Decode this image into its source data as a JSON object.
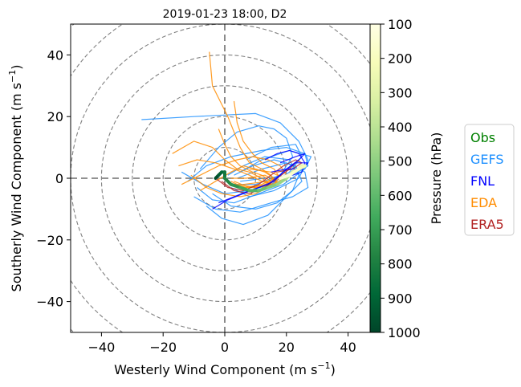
{
  "chart_data": {
    "type": "line",
    "title": "2019-01-23 18:00, D2",
    "xlabel": "Westerly Wind Component (m s",
    "ylabel": "Southerly Wind Component (m s",
    "unit_exponent": "−1",
    "unit_close": ")",
    "xlim": [
      -50,
      50
    ],
    "ylim": [
      -50,
      50
    ],
    "xticks": [
      -40,
      -20,
      0,
      20,
      40
    ],
    "yticks": [
      -40,
      -20,
      0,
      20,
      40
    ],
    "xtick_labels": [
      "−40",
      "−20",
      "0",
      "20",
      "40"
    ],
    "ytick_labels": [
      "−40",
      "−20",
      "0",
      "20",
      "40"
    ],
    "range_rings": [
      10,
      20,
      30,
      40,
      50,
      60,
      70
    ],
    "colorbar": {
      "label": "Pressure (hPa)",
      "ticks": [
        "100",
        "200",
        "300",
        "400",
        "500",
        "600",
        "700",
        "800",
        "900",
        "1000"
      ],
      "range": [
        100,
        1000
      ],
      "colors_top_to_bottom": [
        "#ffffe5",
        "#f7fcb9",
        "#d9f0a3",
        "#addd8e",
        "#78c679",
        "#41ab5d",
        "#238443",
        "#006837",
        "#004529"
      ]
    },
    "legend": {
      "placement": "outside right",
      "entries": [
        {
          "label": "Obs",
          "color": "#008000"
        },
        {
          "label": "GEFS",
          "color": "#1e90ff"
        },
        {
          "label": "FNL",
          "color": "#0000ff"
        },
        {
          "label": "EDA",
          "color": "#ff8c00"
        },
        {
          "label": "ERA5",
          "color": "#b22222"
        }
      ]
    },
    "series": [
      {
        "name": "GEFS",
        "color": "#1e90ff",
        "members": [
          [
            [
              -27,
              19
            ],
            [
              -10,
              20
            ],
            [
              10,
              21
            ],
            [
              18,
              18
            ],
            [
              24,
              12
            ],
            [
              27,
              6
            ],
            [
              24,
              0
            ],
            [
              16,
              -4
            ],
            [
              8,
              -6
            ],
            [
              2,
              -3
            ]
          ],
          [
            [
              -10,
              -6
            ],
            [
              -3,
              -10
            ],
            [
              5,
              -11
            ],
            [
              15,
              -8
            ],
            [
              22,
              -6
            ],
            [
              27,
              -3
            ],
            [
              26,
              2
            ],
            [
              20,
              5
            ],
            [
              12,
              3
            ],
            [
              4,
              0
            ]
          ],
          [
            [
              -6,
              -9
            ],
            [
              -1,
              -13
            ],
            [
              6,
              -15
            ],
            [
              14,
              -12
            ],
            [
              20,
              -6
            ],
            [
              25,
              -1
            ],
            [
              23,
              4
            ],
            [
              16,
              6
            ],
            [
              9,
              4
            ],
            [
              3,
              1
            ]
          ],
          [
            [
              -12,
              -1
            ],
            [
              -6,
              4
            ],
            [
              2,
              7
            ],
            [
              12,
              9
            ],
            [
              20,
              10
            ],
            [
              26,
              8
            ],
            [
              27,
              4
            ],
            [
              22,
              1
            ],
            [
              13,
              0
            ],
            [
              5,
              -1
            ]
          ],
          [
            [
              -8,
              3
            ],
            [
              -2,
              10
            ],
            [
              4,
              15
            ],
            [
              11,
              17
            ],
            [
              16,
              16
            ],
            [
              20,
              13
            ],
            [
              22,
              7
            ],
            [
              18,
              1
            ],
            [
              10,
              -2
            ],
            [
              3,
              -2
            ]
          ],
          [
            [
              -4,
              -5
            ],
            [
              2,
              -9
            ],
            [
              10,
              -10
            ],
            [
              17,
              -8
            ],
            [
              22,
              -4
            ],
            [
              24,
              1
            ],
            [
              21,
              6
            ],
            [
              13,
              7
            ],
            [
              6,
              4
            ],
            [
              1,
              1
            ]
          ],
          [
            [
              -14,
              2
            ],
            [
              -7,
              -2
            ],
            [
              0,
              -5
            ],
            [
              8,
              -4
            ],
            [
              15,
              -2
            ],
            [
              21,
              2
            ],
            [
              25,
              7
            ],
            [
              23,
              11
            ],
            [
              15,
              10
            ],
            [
              7,
              6
            ]
          ],
          [
            [
              -9,
              -3
            ],
            [
              -4,
              -7
            ],
            [
              3,
              -8
            ],
            [
              11,
              -5
            ],
            [
              19,
              -2
            ],
            [
              26,
              3
            ],
            [
              28,
              7
            ],
            [
              21,
              9
            ],
            [
              12,
              6
            ],
            [
              5,
              2
            ]
          ]
        ]
      },
      {
        "name": "EDA",
        "color": "#ff8c00",
        "members": [
          [
            [
              -5,
              41
            ],
            [
              -4,
              30
            ],
            [
              1,
              20
            ],
            [
              3,
              15
            ],
            [
              5,
              10
            ],
            [
              8,
              5
            ],
            [
              12,
              3
            ],
            [
              15,
              1
            ],
            [
              17,
              -2
            ],
            [
              12,
              -3
            ]
          ],
          [
            [
              3,
              25
            ],
            [
              4,
              18
            ],
            [
              6,
              12
            ],
            [
              9,
              8
            ],
            [
              12,
              5
            ],
            [
              16,
              3
            ],
            [
              18,
              0
            ],
            [
              14,
              -2
            ],
            [
              8,
              -3
            ],
            [
              3,
              -1
            ]
          ],
          [
            [
              -17,
              8
            ],
            [
              -10,
              12
            ],
            [
              -4,
              10
            ],
            [
              0,
              6
            ],
            [
              4,
              3
            ],
            [
              8,
              2
            ],
            [
              12,
              0
            ],
            [
              15,
              -2
            ],
            [
              10,
              -3
            ],
            [
              4,
              -2
            ]
          ],
          [
            [
              -14,
              -2
            ],
            [
              -8,
              1
            ],
            [
              -2,
              4
            ],
            [
              4,
              6
            ],
            [
              9,
              7
            ],
            [
              14,
              6
            ],
            [
              18,
              4
            ],
            [
              20,
              1
            ],
            [
              14,
              -1
            ],
            [
              6,
              -2
            ]
          ],
          [
            [
              -11,
              1
            ],
            [
              -6,
              -3
            ],
            [
              -1,
              -5
            ],
            [
              5,
              -6
            ],
            [
              10,
              -5
            ],
            [
              14,
              -3
            ],
            [
              17,
              -1
            ],
            [
              13,
              1
            ],
            [
              7,
              0
            ],
            [
              2,
              0
            ]
          ],
          [
            [
              -8,
              -4
            ],
            [
              -3,
              -1
            ],
            [
              2,
              2
            ],
            [
              6,
              4
            ],
            [
              10,
              3
            ],
            [
              13,
              2
            ],
            [
              16,
              0
            ],
            [
              12,
              -2
            ],
            [
              7,
              -3
            ],
            [
              3,
              -2
            ]
          ],
          [
            [
              -15,
              4
            ],
            [
              -9,
              6
            ],
            [
              -3,
              5
            ],
            [
              3,
              3
            ],
            [
              8,
              1
            ],
            [
              12,
              -1
            ],
            [
              16,
              -2
            ],
            [
              19,
              0
            ],
            [
              15,
              2
            ],
            [
              8,
              3
            ]
          ],
          [
            [
              -2,
              16
            ],
            [
              0,
              11
            ],
            [
              2,
              7
            ],
            [
              5,
              4
            ],
            [
              9,
              2
            ],
            [
              12,
              1
            ],
            [
              15,
              -1
            ],
            [
              11,
              -3
            ],
            [
              6,
              -3
            ],
            [
              2,
              -1
            ]
          ]
        ]
      },
      {
        "name": "ERA5",
        "color": "#b22222",
        "members": [
          [
            [
              -3,
              0
            ],
            [
              1,
              -3
            ],
            [
              6,
              -4
            ],
            [
              11,
              -2
            ],
            [
              15,
              1
            ],
            [
              19,
              4
            ],
            [
              23,
              6
            ],
            [
              25,
              5
            ],
            [
              22,
              3
            ],
            [
              17,
              2
            ]
          ],
          [
            [
              -1,
              -1
            ],
            [
              3,
              -4
            ],
            [
              8,
              -5
            ],
            [
              13,
              -3
            ],
            [
              17,
              0
            ],
            [
              21,
              3
            ],
            [
              24,
              6
            ]
          ]
        ]
      },
      {
        "name": "FNL",
        "color": "#0000ff",
        "members": [
          [
            [
              -4,
              -10
            ],
            [
              1,
              -7
            ],
            [
              6,
              -5
            ],
            [
              11,
              -3
            ],
            [
              16,
              -1
            ],
            [
              20,
              3
            ],
            [
              24,
              6
            ],
            [
              26,
              8
            ],
            [
              23,
              7
            ],
            [
              18,
              5
            ]
          ],
          [
            [
              -2,
              -8
            ],
            [
              3,
              -6
            ],
            [
              8,
              -4
            ],
            [
              14,
              -2
            ],
            [
              19,
              2
            ],
            [
              23,
              5
            ],
            [
              27,
              5
            ],
            [
              25,
              3
            ],
            [
              20,
              3
            ],
            [
              15,
              2
            ]
          ],
          [
            [
              13,
              6
            ],
            [
              17,
              8
            ],
            [
              21,
              9
            ],
            [
              24,
              8
            ],
            [
              26,
              5
            ],
            [
              25,
              2
            ],
            [
              22,
              1
            ]
          ]
        ]
      },
      {
        "name": "Obs",
        "color": "#008000",
        "points": [
          {
            "u": -3,
            "v": 0,
            "p": 1000
          },
          {
            "u": -2,
            "v": 1,
            "p": 950
          },
          {
            "u": -1,
            "v": 2,
            "p": 900
          },
          {
            "u": 0,
            "v": 2,
            "p": 850
          },
          {
            "u": 0,
            "v": 0,
            "p": 800
          },
          {
            "u": 2,
            "v": -2,
            "p": 750
          },
          {
            "u": 5,
            "v": -3,
            "p": 700
          },
          {
            "u": 8,
            "v": -4,
            "p": 650
          },
          {
            "u": 11,
            "v": -4,
            "p": 600
          },
          {
            "u": 14,
            "v": -3,
            "p": 550
          },
          {
            "u": 17,
            "v": -2,
            "p": 500
          },
          {
            "u": 20,
            "v": 0,
            "p": 450
          },
          {
            "u": 22,
            "v": 2,
            "p": 400
          },
          {
            "u": 24,
            "v": 3,
            "p": 350
          },
          {
            "u": 25,
            "v": 4,
            "p": 300
          },
          {
            "u": 26,
            "v": 4,
            "p": 250
          },
          {
            "u": 24,
            "v": 3,
            "p": 200
          },
          {
            "u": 21,
            "v": 1,
            "p": 150
          },
          {
            "u": 18,
            "v": 0,
            "p": 100
          }
        ]
      }
    ]
  }
}
